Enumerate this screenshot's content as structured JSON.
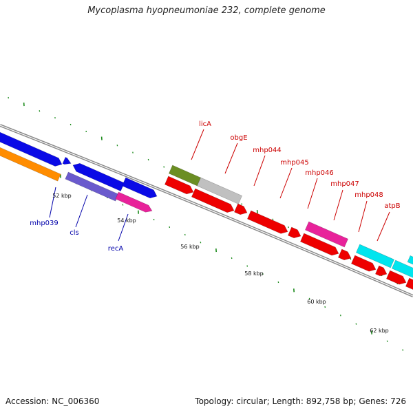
{
  "title": "Mycoplasma hyopneumoniae 232, complete genome",
  "footer": {
    "accession": "Accession: NC_006360",
    "info": "Topology: circular; Length: 892,758 bp; Genes: 726"
  },
  "colors": {
    "backbone": "#888888",
    "tick": "#1a8a1a",
    "label_forward": "#cc0000",
    "label_reverse": "#0000aa",
    "blue": "#0a0ae6",
    "orange": "#ff8c00",
    "slateblue": "#6a5acd",
    "deeppink": "#e8229a",
    "olive": "#6b8e23",
    "silver": "#c0c0c0",
    "red": "#ee0000",
    "cyan": "#00e5ee"
  },
  "scale_labels": [
    "52 kbp",
    "54 kbp",
    "56 kbp",
    "58 kbp",
    "60 kbp",
    "62 kbp"
  ],
  "genes": {
    "forward_labels": [
      "licA",
      "obgE",
      "mhp044",
      "mhp045",
      "mhp046",
      "mhp047",
      "mhp048",
      "atpB"
    ],
    "reverse_labels": [
      "mhp039",
      "cls",
      "recA"
    ]
  }
}
